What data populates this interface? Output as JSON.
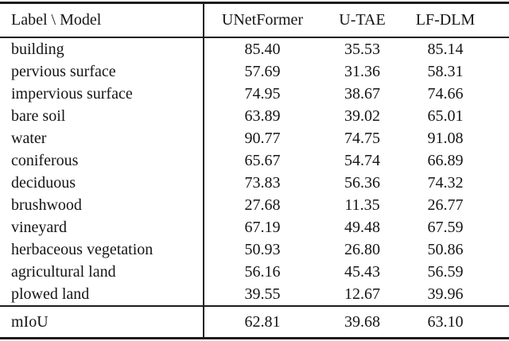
{
  "table": {
    "corner_label": "Label \\ Model",
    "models": [
      "UNetFormer",
      "U-TAE",
      "LF-DLM"
    ],
    "rows": [
      {
        "label": "building",
        "values": [
          "85.40",
          "35.53",
          "85.14"
        ]
      },
      {
        "label": "pervious surface",
        "values": [
          "57.69",
          "31.36",
          "58.31"
        ]
      },
      {
        "label": "impervious surface",
        "values": [
          "74.95",
          "38.67",
          "74.66"
        ]
      },
      {
        "label": "bare soil",
        "values": [
          "63.89",
          "39.02",
          "65.01"
        ]
      },
      {
        "label": "water",
        "values": [
          "90.77",
          "74.75",
          "91.08"
        ]
      },
      {
        "label": "coniferous",
        "values": [
          "65.67",
          "54.74",
          "66.89"
        ]
      },
      {
        "label": "deciduous",
        "values": [
          "73.83",
          "56.36",
          "74.32"
        ]
      },
      {
        "label": "brushwood",
        "values": [
          "27.68",
          "11.35",
          "26.77"
        ]
      },
      {
        "label": "vineyard",
        "values": [
          "67.19",
          "49.48",
          "67.59"
        ]
      },
      {
        "label": "herbaceous vegetation",
        "values": [
          "50.93",
          "26.80",
          "50.86"
        ]
      },
      {
        "label": "agricultural land",
        "values": [
          "56.16",
          "45.43",
          "56.59"
        ]
      },
      {
        "label": "plowed land",
        "values": [
          "39.55",
          "12.67",
          "39.96"
        ]
      }
    ],
    "footer": {
      "label": "mIoU",
      "values": [
        "62.81",
        "39.68",
        "63.10"
      ]
    }
  },
  "colors": {
    "text": "#151515",
    "rule": "#1c1c1c",
    "background": "#ffffff"
  }
}
